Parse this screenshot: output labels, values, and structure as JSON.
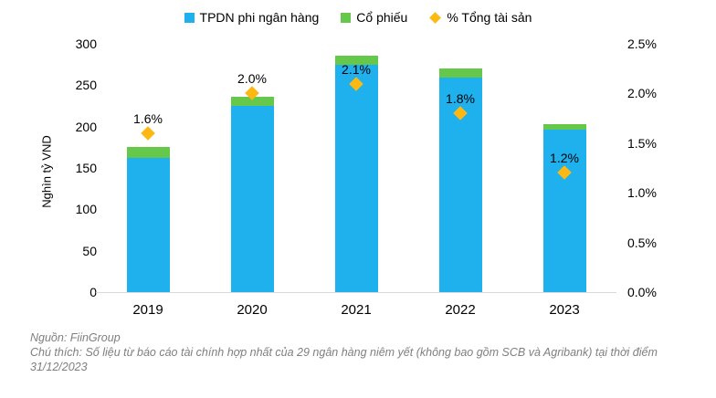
{
  "legend": {
    "items": [
      {
        "label": "TPDN phi ngân hàng",
        "marker": "square",
        "color": "#1fb0ee"
      },
      {
        "label": "Cổ phiếu",
        "marker": "square",
        "color": "#66c84a"
      },
      {
        "label": "% Tổng tài sản",
        "marker": "diamond",
        "color": "#fdb813"
      }
    ]
  },
  "chart_data": {
    "type": "bar",
    "subtype": "stacked-bars-with-secondary-axis-diamond-markers",
    "categories": [
      "2019",
      "2020",
      "2021",
      "2022",
      "2023"
    ],
    "series": [
      {
        "name": "TPDN phi ngân hàng",
        "kind": "bar",
        "stack": true,
        "axis": "left",
        "color": "#1fb0ee",
        "values": [
          162,
          225,
          275,
          259,
          196
        ]
      },
      {
        "name": "Cổ phiếu",
        "kind": "bar",
        "stack": true,
        "axis": "left",
        "color": "#66c84a",
        "values": [
          13,
          11,
          11,
          11,
          7
        ]
      },
      {
        "name": "% Tổng tài sản",
        "kind": "scatter",
        "marker": "diamond",
        "axis": "right",
        "color": "#fdb813",
        "values": [
          1.6,
          2.0,
          2.1,
          1.8,
          1.2
        ],
        "labels": [
          "1.6%",
          "2.0%",
          "2.1%",
          "1.8%",
          "1.2%"
        ]
      }
    ],
    "left_axis": {
      "title": "Nghìn tỷ VND",
      "min": 0,
      "max": 300,
      "step": 50,
      "tick_labels": [
        "0",
        "50",
        "100",
        "150",
        "200",
        "250",
        "300"
      ]
    },
    "right_axis": {
      "min": 0,
      "max": 2.5,
      "step": 0.5,
      "tick_labels": [
        "0.0%",
        "0.5%",
        "1.0%",
        "1.5%",
        "2.0%",
        "2.5%"
      ]
    },
    "grid": false,
    "legend_position": "top",
    "baseline_color": "#d9d9d9"
  },
  "footer": {
    "source": "Nguồn: FiinGroup",
    "note_line1": "Chú thích: Số liệu từ báo cáo tài chính hợp nhất của 29 ngân hàng niêm yết (không bao gồm SCB và Agribank) tại thời điểm",
    "note_line2": "31/12/2023"
  }
}
